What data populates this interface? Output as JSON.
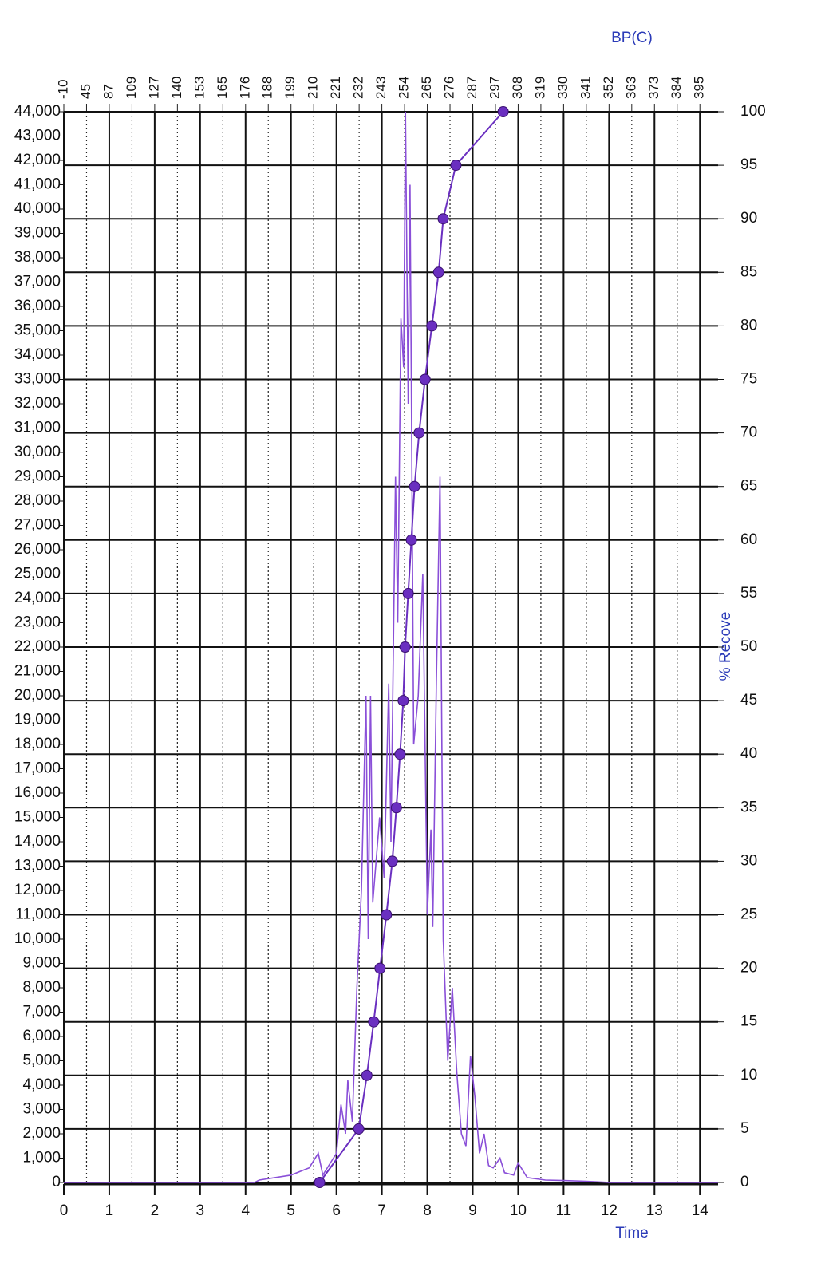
{
  "chart_data": {
    "type": "line",
    "xlabel": "Time",
    "x2label": "BP(C)",
    "y2label": "% Recove",
    "xlim": [
      0,
      14.4
    ],
    "xticks": [
      0,
      1,
      2,
      3,
      4,
      5,
      6,
      7,
      8,
      9,
      10,
      11,
      12,
      13,
      14
    ],
    "x2ticks": [
      -10,
      45,
      87,
      109,
      127,
      140,
      153,
      165,
      176,
      188,
      199,
      210,
      221,
      232,
      243,
      254,
      265,
      276,
      287,
      297,
      308,
      319,
      330,
      341,
      352,
      363,
      373,
      384,
      395
    ],
    "ylim": [
      0,
      44000
    ],
    "yticks": [
      0,
      {
        "value": 1000,
        "label": "1,000"
      },
      {
        "value": 2000,
        "label": "2,000"
      },
      {
        "value": 3000,
        "label": "3,000"
      },
      {
        "value": 4000,
        "label": "4,000"
      },
      {
        "value": 5000,
        "label": "5,000"
      },
      {
        "value": 6000,
        "label": "6,000"
      },
      {
        "value": 7000,
        "label": "7,000"
      },
      {
        "value": 8000,
        "label": "8,000"
      },
      {
        "value": 9000,
        "label": "9,000"
      },
      {
        "value": 10000,
        "label": "10,000"
      },
      {
        "value": 11000,
        "label": "11,000"
      },
      {
        "value": 12000,
        "label": "12,000"
      },
      {
        "value": 13000,
        "label": "13,000"
      },
      {
        "value": 14000,
        "label": "14,000"
      },
      {
        "value": 15000,
        "label": "15,000"
      },
      {
        "value": 16000,
        "label": "16,000"
      },
      {
        "value": 17000,
        "label": "17,000"
      },
      {
        "value": 18000,
        "label": "18,000"
      },
      {
        "value": 19000,
        "label": "19,000"
      },
      {
        "value": 20000,
        "label": "20,000"
      },
      {
        "value": 21000,
        "label": "21,000"
      },
      {
        "value": 22000,
        "label": "22,000"
      },
      {
        "value": 23000,
        "label": "23,000"
      },
      {
        "value": 24000,
        "label": "24,000"
      },
      {
        "value": 25000,
        "label": "25,000"
      },
      {
        "value": 26000,
        "label": "26,000"
      },
      {
        "value": 27000,
        "label": "27,000"
      },
      {
        "value": 28000,
        "label": "28,000"
      },
      {
        "value": 29000,
        "label": "29,000"
      },
      {
        "value": 30000,
        "label": "30,000"
      },
      {
        "value": 31000,
        "label": "31,000"
      },
      {
        "value": 32000,
        "label": "32,000"
      },
      {
        "value": 33000,
        "label": "33,000"
      },
      {
        "value": 34000,
        "label": "34,000"
      },
      {
        "value": 35000,
        "label": "35,000"
      },
      {
        "value": 36000,
        "label": "36,000"
      },
      {
        "value": 37000,
        "label": "37,000"
      },
      {
        "value": 38000,
        "label": "38,000"
      },
      {
        "value": 39000,
        "label": "39,000"
      },
      {
        "value": 40000,
        "label": "40,000"
      },
      {
        "value": 41000,
        "label": "41,000"
      },
      {
        "value": 42000,
        "label": "42,000"
      },
      {
        "value": 43000,
        "label": "43,000"
      },
      {
        "value": 44000,
        "label": "44,000"
      }
    ],
    "y2lim": [
      0,
      100
    ],
    "y2ticks": [
      0,
      5,
      10,
      15,
      20,
      25,
      30,
      35,
      40,
      45,
      50,
      55,
      60,
      65,
      70,
      75,
      80,
      85,
      90,
      95,
      100
    ],
    "grid": true,
    "series": [
      {
        "color": "#8a4fd8",
        "x": [
          0,
          4.2,
          4.3,
          5.0,
          5.4,
          5.6,
          5.7,
          5.9,
          6.0,
          6.1,
          6.2,
          6.25,
          6.35,
          6.45,
          6.55,
          6.65,
          6.7,
          6.75,
          6.8,
          6.95,
          7.05,
          7.15,
          7.2,
          7.3,
          7.35,
          7.42,
          7.48,
          7.52,
          7.58,
          7.62,
          7.7,
          7.8,
          7.9,
          8.0,
          8.08,
          8.12,
          8.2,
          8.28,
          8.35,
          8.45,
          8.55,
          8.65,
          8.75,
          8.85,
          8.95,
          9.05,
          9.15,
          9.25,
          9.35,
          9.45,
          9.6,
          9.7,
          9.9,
          10.0,
          10.2,
          10.6,
          11.0,
          11.5,
          12.0,
          14.4
        ],
        "values": [
          0,
          0,
          100,
          300,
          600,
          1200,
          300,
          900,
          1200,
          3200,
          2000,
          4200,
          2500,
          8000,
          12000,
          20000,
          10000,
          20000,
          11500,
          15000,
          12500,
          20500,
          14000,
          29000,
          23000,
          35500,
          33500,
          44000,
          32000,
          41000,
          18000,
          20000,
          25000,
          11000,
          14500,
          10500,
          20500,
          29000,
          10000,
          5000,
          8000,
          4500,
          2000,
          1500,
          5200,
          3500,
          1200,
          2000,
          700,
          600,
          1000,
          400,
          300,
          800,
          200,
          100,
          80,
          50,
          0,
          0
        ]
      },
      {
        "color": "#6a2fc0",
        "axis": "y2",
        "markers": true,
        "x": [
          5.63,
          6.49,
          6.67,
          6.82,
          6.96,
          7.1,
          7.23,
          7.32,
          7.4,
          7.47,
          7.51,
          7.58,
          7.65,
          7.72,
          7.82,
          7.95,
          8.1,
          8.25,
          8.35,
          8.63,
          9.67
        ],
        "values": [
          0,
          5,
          10,
          15,
          20,
          25,
          30,
          35,
          40,
          45,
          50,
          55,
          60,
          65,
          70,
          75,
          80,
          85,
          90,
          95,
          100
        ]
      }
    ]
  }
}
